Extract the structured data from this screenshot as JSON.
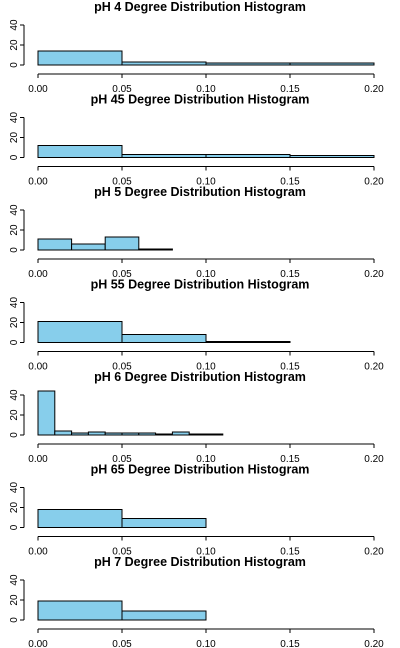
{
  "chart_data": [
    {
      "type": "bar",
      "title": "pH 4 Degree Distribution Histogram",
      "xlim": [
        0,
        0.2
      ],
      "ylim": [
        0,
        50
      ],
      "x_ticks": [
        "0.00",
        "0.05",
        "0.10",
        "0.15",
        "0.20"
      ],
      "y_ticks": [
        "0",
        "20",
        "40"
      ],
      "bins": [
        [
          0,
          0.05
        ],
        [
          0.05,
          0.1
        ],
        [
          0.1,
          0.15
        ],
        [
          0.15,
          0.2
        ]
      ],
      "values": [
        14,
        3,
        2,
        2
      ]
    },
    {
      "type": "bar",
      "title": "pH 45 Degree Distribution Histogram",
      "xlim": [
        0,
        0.2
      ],
      "ylim": [
        0,
        50
      ],
      "x_ticks": [
        "0.00",
        "0.05",
        "0.10",
        "0.15",
        "0.20"
      ],
      "y_ticks": [
        "0",
        "20",
        "40"
      ],
      "bins": [
        [
          0,
          0.05
        ],
        [
          0.05,
          0.1
        ],
        [
          0.1,
          0.15
        ],
        [
          0.15,
          0.2
        ]
      ],
      "values": [
        12,
        3,
        3,
        2
      ]
    },
    {
      "type": "bar",
      "title": "pH 5 Degree Distribution Histogram",
      "xlim": [
        0,
        0.2
      ],
      "ylim": [
        0,
        50
      ],
      "x_ticks": [
        "0.00",
        "0.05",
        "0.10",
        "0.15",
        "0.20"
      ],
      "y_ticks": [
        "0",
        "20",
        "40"
      ],
      "bins": [
        [
          0,
          0.02
        ],
        [
          0.02,
          0.04
        ],
        [
          0.04,
          0.06
        ],
        [
          0.06,
          0.08
        ]
      ],
      "values": [
        11,
        6,
        13,
        1
      ]
    },
    {
      "type": "bar",
      "title": "pH 55 Degree Distribution Histogram",
      "xlim": [
        0,
        0.2
      ],
      "ylim": [
        0,
        50
      ],
      "x_ticks": [
        "0.00",
        "0.05",
        "0.10",
        "0.15",
        "0.20"
      ],
      "y_ticks": [
        "0",
        "20",
        "40"
      ],
      "bins": [
        [
          0,
          0.05
        ],
        [
          0.05,
          0.1
        ],
        [
          0.1,
          0.15
        ]
      ],
      "values": [
        21,
        8,
        1
      ]
    },
    {
      "type": "bar",
      "title": "pH 6 Degree Distribution Histogram",
      "xlim": [
        0,
        0.2
      ],
      "ylim": [
        0,
        50
      ],
      "x_ticks": [
        "0.00",
        "0.05",
        "0.10",
        "0.15",
        "0.20"
      ],
      "y_ticks": [
        "0",
        "20",
        "40"
      ],
      "bins": [
        [
          0,
          0.01
        ],
        [
          0.01,
          0.02
        ],
        [
          0.02,
          0.03
        ],
        [
          0.03,
          0.04
        ],
        [
          0.04,
          0.05
        ],
        [
          0.05,
          0.06
        ],
        [
          0.06,
          0.07
        ],
        [
          0.07,
          0.08
        ],
        [
          0.08,
          0.09
        ],
        [
          0.09,
          0.1
        ],
        [
          0.1,
          0.11
        ]
      ],
      "values": [
        44,
        4,
        2,
        3,
        2,
        2,
        2,
        1,
        3,
        1,
        1
      ]
    },
    {
      "type": "bar",
      "title": "pH 65 Degree Distribution Histogram",
      "xlim": [
        0,
        0.2
      ],
      "ylim": [
        0,
        50
      ],
      "x_ticks": [
        "0.00",
        "0.05",
        "0.10",
        "0.15",
        "0.20"
      ],
      "y_ticks": [
        "0",
        "20",
        "40"
      ],
      "bins": [
        [
          0,
          0.05
        ],
        [
          0.05,
          0.1
        ]
      ],
      "values": [
        18,
        9
      ]
    },
    {
      "type": "bar",
      "title": "pH 7 Degree Distribution Histogram",
      "xlim": [
        0,
        0.2
      ],
      "ylim": [
        0,
        50
      ],
      "x_ticks": [
        "0.00",
        "0.05",
        "0.10",
        "0.15",
        "0.20"
      ],
      "y_ticks": [
        "0",
        "20",
        "40"
      ],
      "bins": [
        [
          0,
          0.05
        ],
        [
          0.05,
          0.1
        ]
      ],
      "values": [
        19,
        9
      ]
    }
  ],
  "colors": {
    "bar_fill": "#87ceeb",
    "bar_stroke": "#000000",
    "axis": "#000000"
  }
}
